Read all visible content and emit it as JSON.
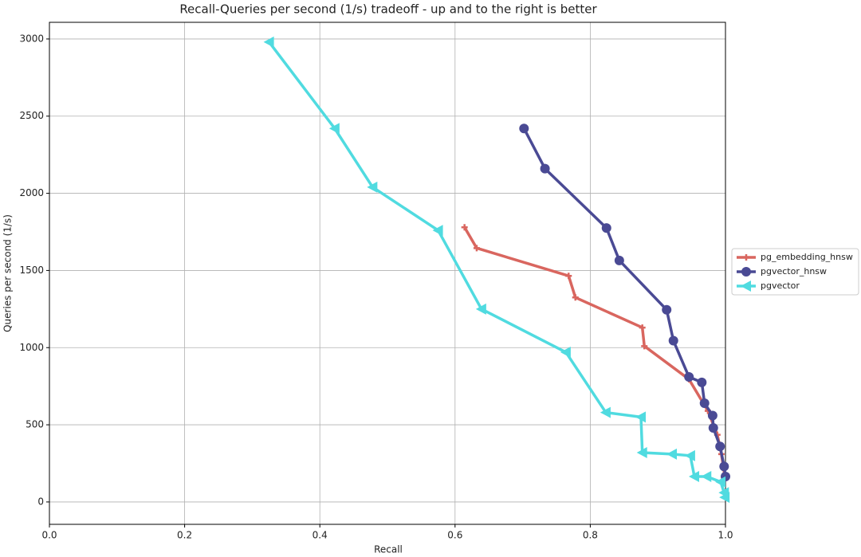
{
  "chart_data": {
    "type": "line",
    "title": "Recall-Queries per second (1/s) tradeoff - up and to the right is better",
    "x_label": "Recall",
    "y_label": "Queries per second (1/s)",
    "xlim": [
      0,
      1
    ],
    "ylim": [
      -145,
      3108
    ],
    "xticks": [
      {
        "value": 0,
        "label": "0.0"
      },
      0.2,
      0.4,
      0.6,
      0.8,
      {
        "value": 1,
        "label": "1.0"
      }
    ],
    "yticks": [
      0,
      500,
      1000,
      1500,
      2000,
      2500,
      3000
    ],
    "grid": true,
    "legend": "right",
    "series": [
      {
        "name": "pg_embedding_hnsw",
        "color": "#d9665f",
        "marker": "plus",
        "x": [
          0.614,
          0.632,
          0.768,
          0.778,
          0.877,
          0.88,
          0.946,
          0.974,
          0.988,
          0.994,
          0.999
        ],
        "values": [
          1780,
          1645,
          1465,
          1325,
          1130,
          1010,
          795,
          590,
          435,
          310,
          165
        ]
      },
      {
        "name": "pgvector_hnsw",
        "color": "#4a4a94",
        "marker": "circle",
        "x": [
          0.702,
          0.733,
          0.824,
          0.843,
          0.913,
          0.923,
          0.946,
          0.965,
          0.969,
          0.981,
          0.982,
          0.992,
          0.998,
          1.0
        ],
        "values": [
          2420,
          2160,
          1775,
          1565,
          1245,
          1045,
          810,
          775,
          640,
          560,
          480,
          360,
          230,
          165
        ]
      },
      {
        "name": "pgvector",
        "color": "#50dbe0",
        "marker": "triangle-left",
        "x": [
          0.325,
          0.422,
          0.478,
          0.575,
          0.639,
          0.764,
          0.823,
          0.875,
          0.877,
          0.921,
          0.948,
          0.954,
          0.972,
          0.993,
          0.998,
          0.999
        ],
        "values": [
          2980,
          2420,
          2040,
          1760,
          1250,
          970,
          580,
          550,
          320,
          310,
          300,
          165,
          165,
          130,
          60,
          30
        ]
      }
    ]
  }
}
